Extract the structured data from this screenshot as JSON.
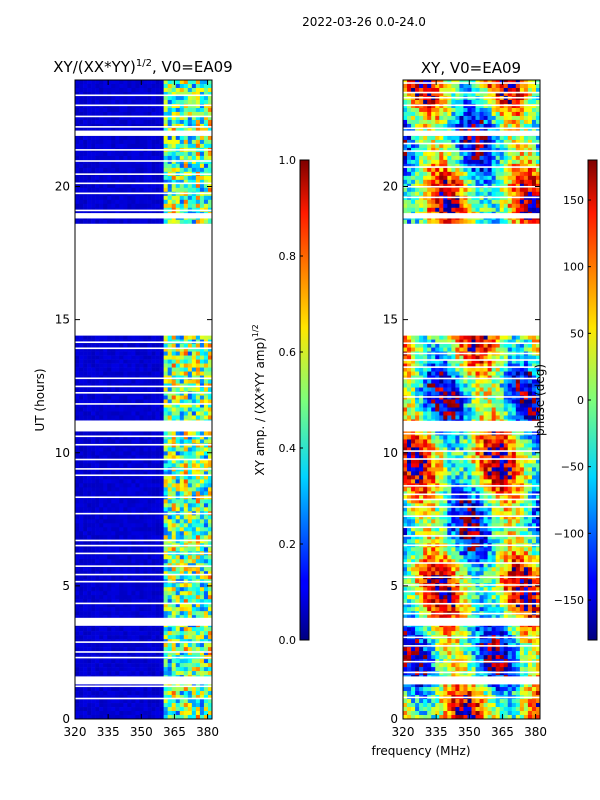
{
  "figure": {
    "suptitle": "2022-03-26 0.0-24.0",
    "xlabel": "frequency (MHz)"
  },
  "chart_data": [
    {
      "type": "heatmap",
      "title_base": "XY/(XX*YY)",
      "title_exp": "1/2",
      "title_tail": ", V0=EA09",
      "xlabel": "frequency (MHz)",
      "ylabel": "UT (hours)",
      "xlim": [
        320,
        382
      ],
      "ylim": [
        0,
        24
      ],
      "xticks": [
        320,
        335,
        350,
        365,
        380
      ],
      "yticks": [
        0,
        5,
        10,
        15,
        20
      ],
      "colorbar": {
        "label_base": "XY amp. / (XX*YY amp)",
        "label_exp": "1/2",
        "range": [
          0.0,
          1.0
        ],
        "ticks": [
          "0.0",
          "0.2",
          "0.4",
          "0.6",
          "0.8",
          "1.0"
        ],
        "colormap": "jet"
      },
      "data_gaps_hours": [
        [
          14.4,
          18.6
        ],
        [
          21.9,
          22.1
        ],
        [
          18.8,
          19.0
        ],
        [
          10.8,
          11.2
        ],
        [
          3.5,
          3.8
        ],
        [
          1.3,
          1.6
        ]
      ],
      "summary": "low amplitude (~0.05) below 360 MHz; patchy 0.3-0.7 between 361 and 382 MHz"
    },
    {
      "type": "heatmap",
      "title": "XY, V0=EA09",
      "xlabel": "frequency (MHz)",
      "ylabel": "",
      "xlim": [
        320,
        382
      ],
      "ylim": [
        0,
        24
      ],
      "xticks": [
        320,
        335,
        350,
        365,
        380
      ],
      "yticks": [
        0,
        5,
        10,
        15,
        20
      ],
      "colorbar": {
        "label": "phase (deg)",
        "range": [
          -180,
          180
        ],
        "ticks": [
          "−150",
          "−100",
          "−50",
          "0",
          "50",
          "100",
          "150"
        ],
        "colormap": "jet"
      },
      "data_gaps_hours": [
        [
          14.4,
          18.6
        ],
        [
          21.9,
          22.1
        ],
        [
          18.8,
          19.0
        ],
        [
          10.8,
          11.2
        ],
        [
          3.5,
          3.8
        ],
        [
          1.3,
          1.6
        ]
      ],
      "summary": "phase varies across full -180 to 180 range with frequency and time structure"
    }
  ]
}
